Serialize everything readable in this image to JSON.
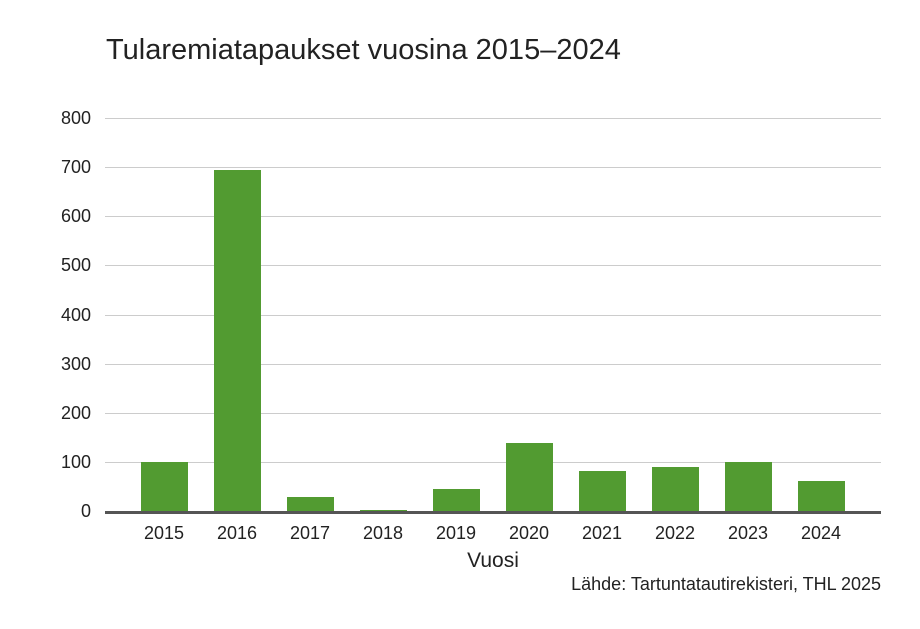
{
  "chart_data": {
    "type": "bar",
    "title": "Tularemiatapaukset vuosina 2015–2024",
    "xlabel": "Vuosi",
    "ylabel": "",
    "source": "Lähde: Tartuntatautirekisteri, THL 2025",
    "categories": [
      "2015",
      "2016",
      "2017",
      "2018",
      "2019",
      "2020",
      "2021",
      "2022",
      "2023",
      "2024"
    ],
    "values": [
      102,
      697,
      30,
      5,
      46,
      141,
      84,
      91,
      102,
      64
    ],
    "ylim": [
      0,
      800
    ],
    "yticks": [
      0,
      100,
      200,
      300,
      400,
      500,
      600,
      700,
      800
    ],
    "grid": true,
    "legend": null,
    "bar_color": "#529b31"
  }
}
